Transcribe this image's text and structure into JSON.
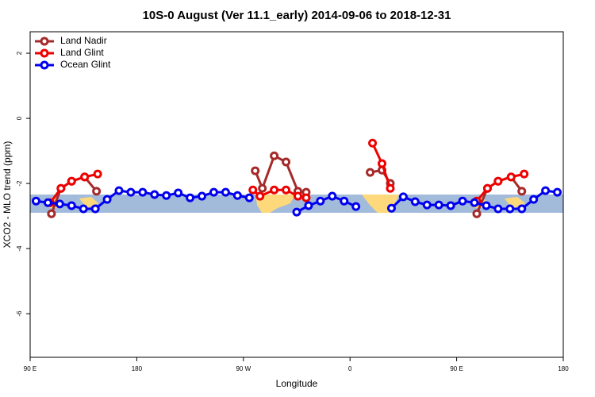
{
  "chart_data": {
    "type": "line",
    "title": "10S-0 August (Ver 11.1_early)   2014-09-06 to 2018-12-31",
    "x_label": "Longitude",
    "y_label": "XCO2 - MLO trend (ppm)",
    "xlim": [
      90,
      540
    ],
    "ylim": [
      -7.34,
      2.66
    ],
    "xticks": [
      {
        "value": 90,
        "label": "90 E"
      },
      {
        "value": 180,
        "label": "180"
      },
      {
        "value": 270,
        "label": "90 W"
      },
      {
        "value": 360,
        "label": "0"
      },
      {
        "value": 450,
        "label": "90 E"
      },
      {
        "value": 540,
        "label": "180"
      }
    ],
    "yticks": [
      2,
      0,
      -2,
      -4,
      -6
    ],
    "legend": "top-left",
    "series": [
      {
        "name": "Land Nadir",
        "color": "#a52a2a",
        "x": [
          108,
          116,
          125,
          136,
          146,
          null,
          280,
          286,
          296,
          306,
          316,
          323,
          null,
          377,
          387,
          394,
          null,
          467,
          476,
          485,
          496,
          505
        ],
        "values": [
          -2.93,
          -2.15,
          -1.93,
          -1.8,
          -2.24,
          null,
          -1.61,
          -2.15,
          -1.15,
          -1.34,
          -2.24,
          -2.27,
          null,
          -1.66,
          -1.59,
          -2.0,
          null,
          -2.93,
          -2.15,
          -1.93,
          -1.8,
          -2.24
        ]
      },
      {
        "name": "Land Glint",
        "color": "#ee0000",
        "x": [
          107,
          116,
          125,
          136,
          147,
          null,
          278,
          284,
          296,
          306,
          316,
          323,
          null,
          379,
          387,
          394,
          null,
          467,
          476,
          485,
          496,
          507
        ],
        "values": [
          -2.59,
          -2.15,
          -1.93,
          -1.8,
          -1.71,
          null,
          -2.2,
          -2.39,
          -2.2,
          -2.2,
          -2.39,
          -2.44,
          null,
          -0.76,
          -1.39,
          -2.15,
          null,
          -2.54,
          -2.15,
          -1.93,
          -1.8,
          -1.71
        ]
      },
      {
        "name": "Ocean Glint",
        "color": "#0000ee",
        "x": [
          95,
          105,
          115,
          125,
          135,
          145,
          155,
          165,
          175,
          185,
          195,
          205,
          215,
          225,
          235,
          245,
          255,
          265,
          275,
          null,
          315,
          325,
          335,
          345,
          355,
          365,
          null,
          395,
          405,
          415,
          425,
          435,
          445,
          455,
          465,
          475,
          485,
          495,
          505,
          515,
          525,
          535
        ],
        "values": [
          -2.54,
          -2.59,
          -2.63,
          -2.68,
          -2.78,
          -2.78,
          -2.49,
          -2.22,
          -2.27,
          -2.27,
          -2.34,
          -2.37,
          -2.29,
          -2.44,
          -2.39,
          -2.27,
          -2.27,
          -2.37,
          -2.44,
          null,
          -2.88,
          -2.68,
          -2.54,
          -2.39,
          -2.54,
          -2.71,
          null,
          -2.76,
          -2.41,
          -2.56,
          -2.66,
          -2.66,
          -2.68,
          -2.54,
          -2.59,
          -2.68,
          -2.78,
          -2.78,
          -2.78,
          -2.49,
          -2.22,
          -2.27
        ]
      }
    ]
  }
}
